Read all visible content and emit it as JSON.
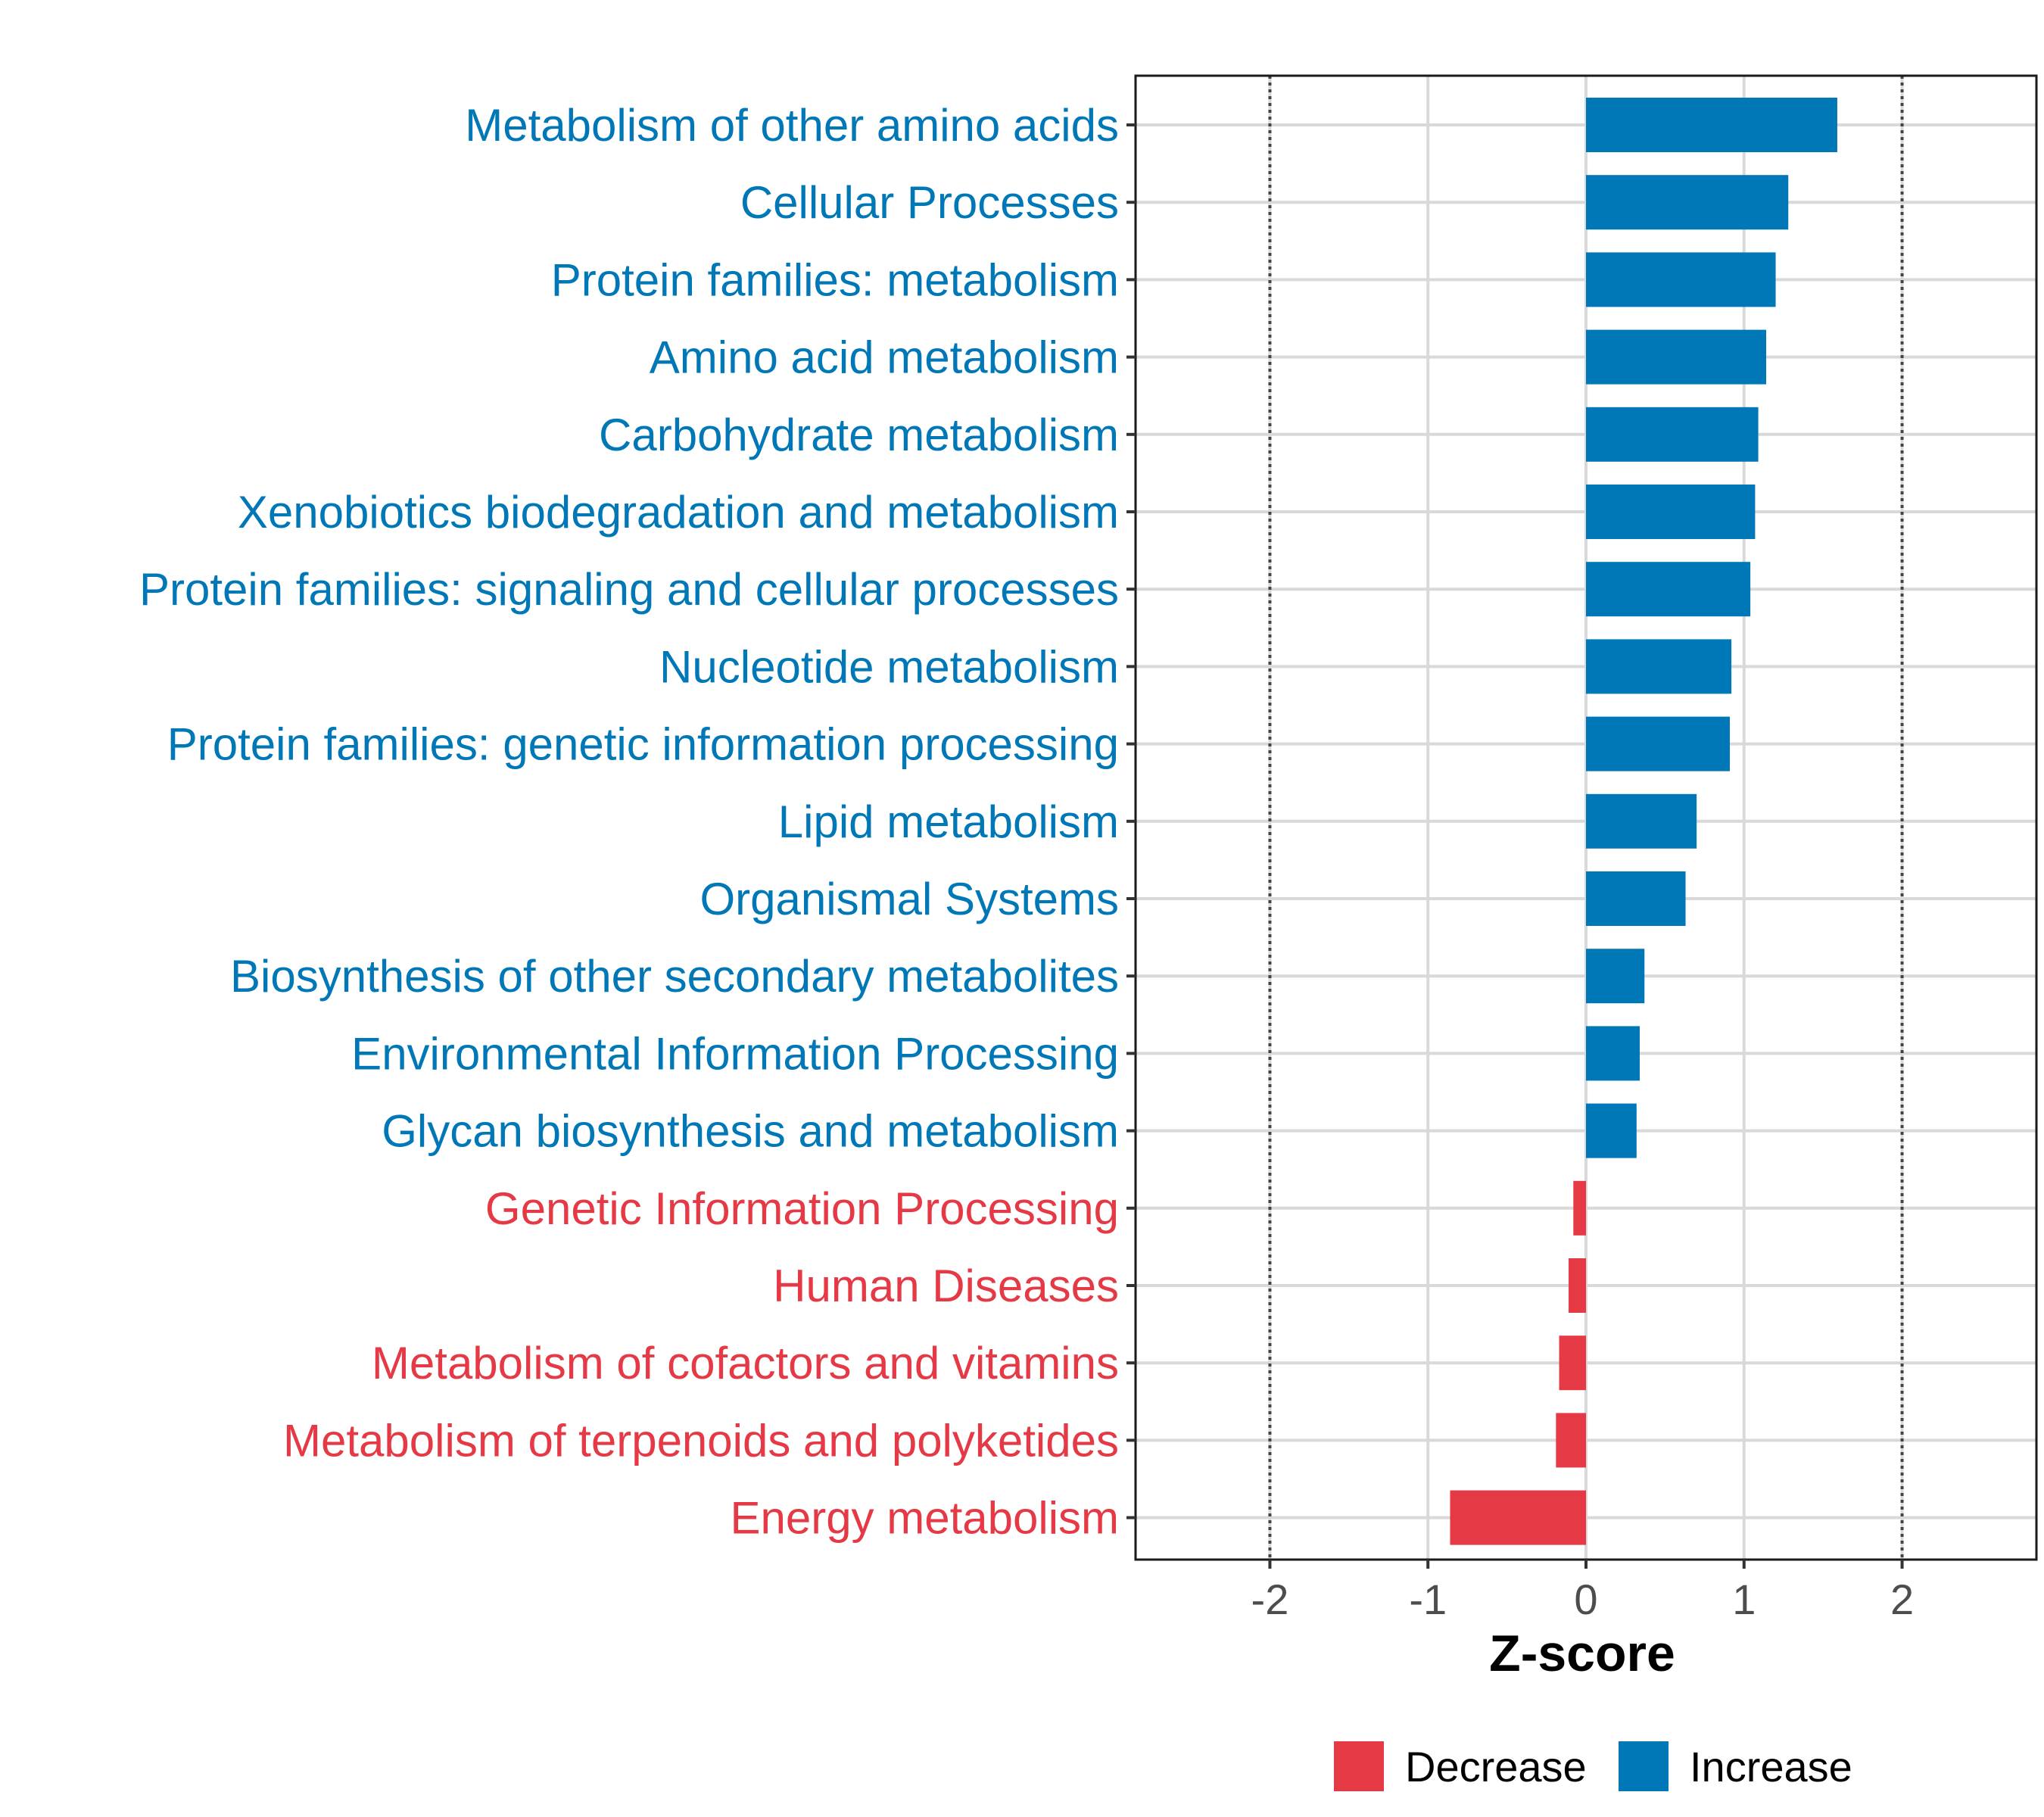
{
  "chart_data": {
    "type": "bar",
    "orientation": "horizontal",
    "xlabel": "Z-score",
    "xlim": [
      -2.85,
      2.85
    ],
    "xticks": [
      -2,
      -1,
      0,
      1,
      2
    ],
    "xtick_labels": [
      "-2",
      "-1",
      "0",
      "1",
      "2"
    ],
    "reference_lines": [
      -2,
      2
    ],
    "grid": true,
    "legend_position": "bottom",
    "colors": {
      "Decrease": "#E63946",
      "Increase": "#0077B6"
    },
    "legend": [
      {
        "label": "Decrease",
        "color": "#E63946"
      },
      {
        "label": "Increase",
        "color": "#0077B6"
      }
    ],
    "categories": [
      "Metabolism of other amino acids",
      "Cellular Processes",
      "Protein families: metabolism",
      "Amino acid metabolism",
      "Carbohydrate metabolism",
      "Xenobiotics biodegradation and metabolism",
      "Protein families: signaling and cellular processes",
      "Nucleotide metabolism",
      "Protein families: genetic information processing",
      "Lipid metabolism",
      "Organismal Systems",
      "Biosynthesis of other secondary metabolites",
      "Environmental Information Processing",
      "Glycan biosynthesis and metabolism",
      "Genetic Information Processing",
      "Human Diseases",
      "Metabolism of cofactors and vitamins",
      "Metabolism of terpenoids and polyketides",
      "Energy metabolism"
    ],
    "values": [
      1.59,
      1.28,
      1.2,
      1.14,
      1.09,
      1.07,
      1.04,
      0.92,
      0.91,
      0.7,
      0.63,
      0.37,
      0.34,
      0.32,
      -0.08,
      -0.11,
      -0.17,
      -0.19,
      -0.86
    ],
    "groups": [
      "Increase",
      "Increase",
      "Increase",
      "Increase",
      "Increase",
      "Increase",
      "Increase",
      "Increase",
      "Increase",
      "Increase",
      "Increase",
      "Increase",
      "Increase",
      "Increase",
      "Decrease",
      "Decrease",
      "Decrease",
      "Decrease",
      "Decrease"
    ]
  }
}
